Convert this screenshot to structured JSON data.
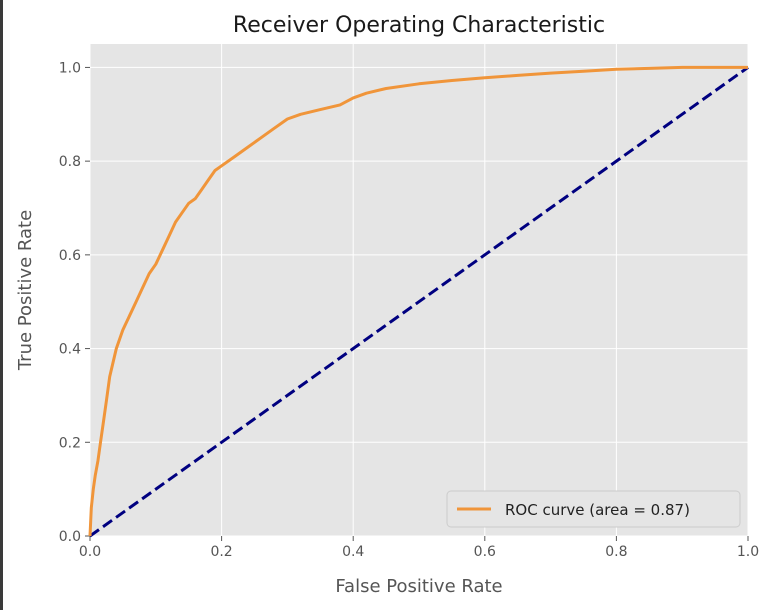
{
  "chart_data": {
    "type": "line",
    "title": "Receiver Operating Characteristic",
    "xlabel": "False Positive Rate",
    "ylabel": "True Positive Rate",
    "xlim": [
      0.0,
      1.0
    ],
    "ylim": [
      0.0,
      1.05
    ],
    "xticks": [
      "0.0",
      "0.2",
      "0.4",
      "0.6",
      "0.8",
      "1.0"
    ],
    "yticks": [
      "0.0",
      "0.2",
      "0.4",
      "0.6",
      "0.8",
      "1.0"
    ],
    "grid": true,
    "legend_position": "lower-right",
    "colors": {
      "plot_background": "#e5e5e5",
      "grid": "#ffffff",
      "roc_curve": "#f0953a",
      "chance_line": "#000080"
    },
    "series": [
      {
        "name": "ROC curve (area = 0.87)",
        "style": "solid",
        "x": [
          0.0,
          0.002,
          0.005,
          0.008,
          0.012,
          0.016,
          0.02,
          0.025,
          0.03,
          0.035,
          0.04,
          0.05,
          0.06,
          0.07,
          0.08,
          0.09,
          0.1,
          0.11,
          0.12,
          0.13,
          0.14,
          0.15,
          0.16,
          0.17,
          0.18,
          0.19,
          0.2,
          0.22,
          0.24,
          0.26,
          0.28,
          0.3,
          0.32,
          0.35,
          0.38,
          0.4,
          0.42,
          0.45,
          0.5,
          0.55,
          0.6,
          0.65,
          0.7,
          0.75,
          0.8,
          0.85,
          0.9,
          0.95,
          1.0
        ],
        "y": [
          0.0,
          0.06,
          0.1,
          0.13,
          0.16,
          0.2,
          0.24,
          0.29,
          0.34,
          0.37,
          0.4,
          0.44,
          0.47,
          0.5,
          0.53,
          0.56,
          0.58,
          0.61,
          0.64,
          0.67,
          0.69,
          0.71,
          0.72,
          0.74,
          0.76,
          0.78,
          0.79,
          0.81,
          0.83,
          0.85,
          0.87,
          0.89,
          0.9,
          0.91,
          0.92,
          0.935,
          0.945,
          0.955,
          0.965,
          0.972,
          0.978,
          0.983,
          0.988,
          0.992,
          0.996,
          0.998,
          1.0,
          1.0,
          1.0
        ]
      },
      {
        "name": "",
        "style": "dashed",
        "x": [
          0.0,
          1.0
        ],
        "y": [
          0.0,
          1.0
        ]
      }
    ]
  }
}
